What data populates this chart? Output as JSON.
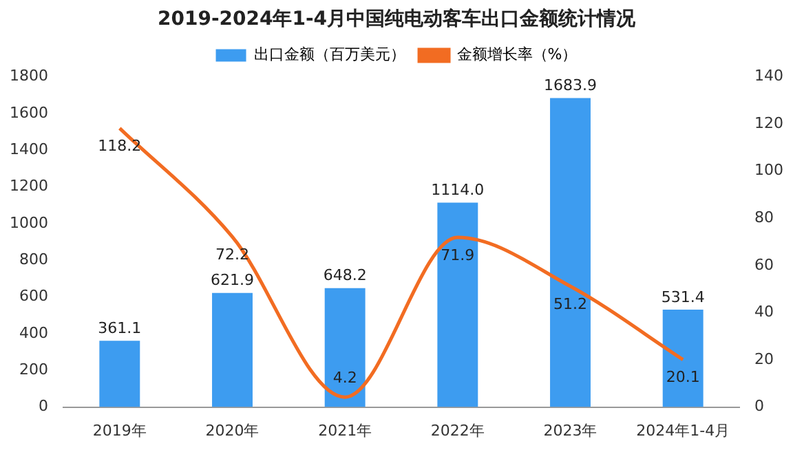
{
  "chart_data": {
    "type": "bar",
    "title": "2019-2024年1-4月中国纯电动客车出口金额统计情况",
    "categories": [
      "2019年",
      "2020年",
      "2021年",
      "2022年",
      "2023年",
      "2024年1-4月"
    ],
    "series": [
      {
        "name": "出口金额（百万美元）",
        "color": "#3d9cf0",
        "values": [
          361.1,
          621.9,
          648.2,
          1114.0,
          1683.9,
          531.4
        ],
        "value_labels": [
          "361.1",
          "621.9",
          "648.2",
          "1114.0",
          "1683.9",
          "531.4"
        ]
      },
      {
        "name": "金额增长率（%）",
        "type": "line",
        "axis": "y2",
        "color": "#f26c22",
        "values": [
          118.2,
          72.2,
          4.2,
          71.9,
          51.2,
          20.1
        ],
        "value_labels": [
          "118.2",
          "72.2",
          "4.2",
          "71.9",
          "51.2",
          "20.1"
        ]
      }
    ],
    "ylim": [
      0,
      1800
    ],
    "yticks": [
      0,
      200,
      400,
      600,
      800,
      1000,
      1200,
      1400,
      1600,
      1800
    ],
    "y2lim": [
      0,
      140
    ],
    "y2ticks": [
      0,
      20,
      40,
      60,
      80,
      100,
      120,
      140
    ],
    "grid": false,
    "legend": "top",
    "marker": "none"
  }
}
